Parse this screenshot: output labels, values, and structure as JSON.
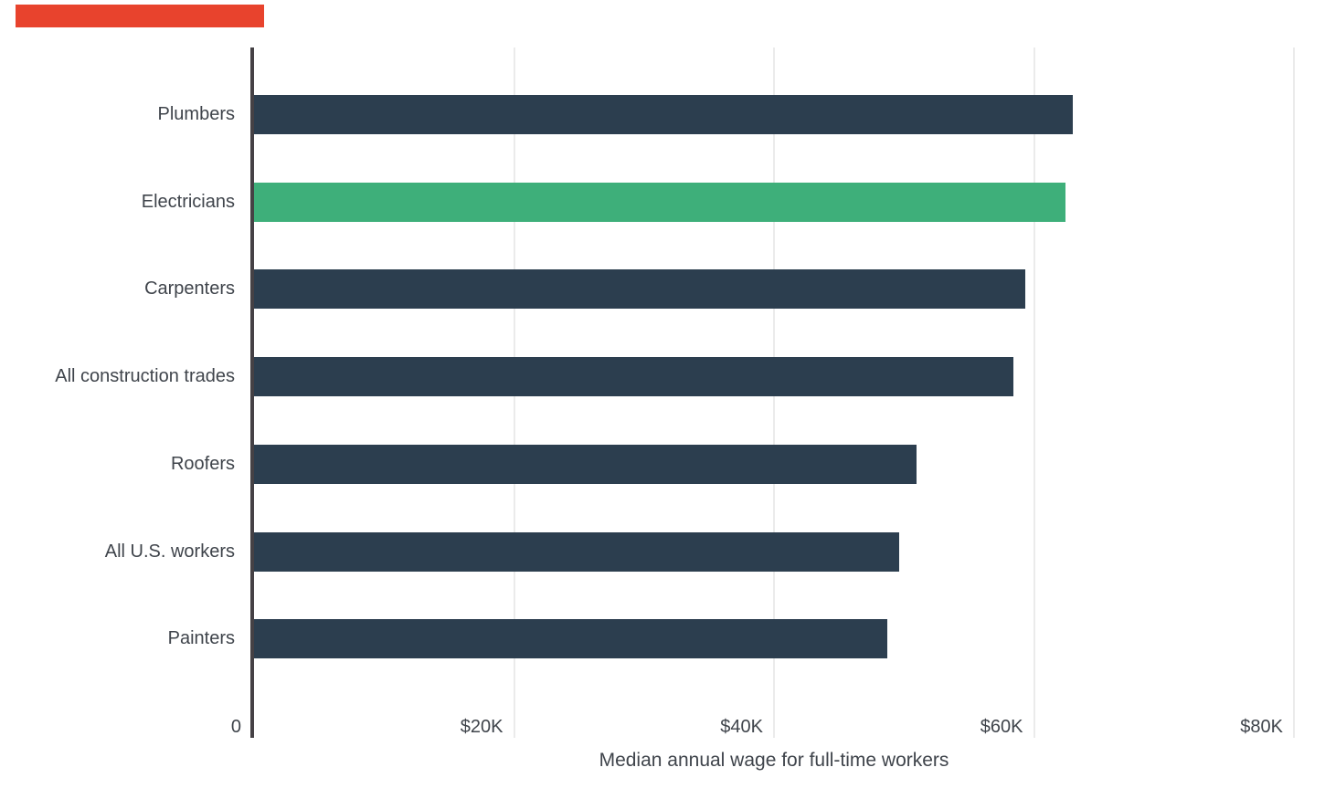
{
  "banner": {
    "color": "#e8432d"
  },
  "chart_data": {
    "type": "bar",
    "orientation": "horizontal",
    "title": "",
    "xlabel": "Median annual wage for full-time workers",
    "ylabel": "",
    "xlim": [
      0,
      80000
    ],
    "grid": "vertical",
    "legend_position": "none",
    "categories": [
      "Plumbers",
      "Electricians",
      "Carpenters",
      "All construction trades",
      "Roofers",
      "All U.S. workers",
      "Painters"
    ],
    "values": [
      63000,
      62400,
      59300,
      58400,
      51000,
      49600,
      48700
    ],
    "highlighted_category": "Electricians",
    "x_ticks": [
      {
        "value": 0,
        "label": "0"
      },
      {
        "value": 20000,
        "label": "$20K"
      },
      {
        "value": 40000,
        "label": "$40K"
      },
      {
        "value": 60000,
        "label": "$60K"
      },
      {
        "value": 80000,
        "label": "$80K"
      }
    ],
    "colors": {
      "bar": "#2c3e4f",
      "highlight": "#3eaf7a",
      "axis_line": "#454145",
      "gridline": "#ebebeb",
      "text": "#3f444b"
    }
  }
}
